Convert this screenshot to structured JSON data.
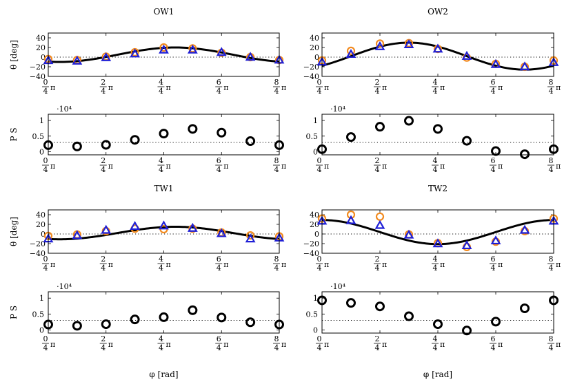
{
  "figure": {
    "x_label": "φ [rad]",
    "theta_label": "θ [deg]",
    "ps_label": "P S",
    "ps_multiplier": "·10⁴",
    "colors": {
      "orange": "#f28a1e",
      "blue": "#1f1fd6",
      "black": "#000000"
    }
  },
  "chart_data": [
    {
      "type": "scatter",
      "title": "OW1",
      "panel": "theta",
      "x_ticks": [
        "0/4π",
        "2/4π",
        "4/4π",
        "6/4π",
        "8/4π"
      ],
      "y_ticks": [
        40,
        20,
        0,
        -20,
        -40
      ],
      "xlim": [
        0,
        2
      ],
      "ylim": [
        -40,
        50
      ],
      "reference_line": 0,
      "curve": {
        "type": "sine",
        "amp": 15,
        "mean": 5,
        "peak_x": 1.1
      },
      "series": [
        {
          "marker": "circle",
          "color": "orange",
          "x": [
            0,
            0.25,
            0.5,
            0.75,
            1,
            1.25,
            1.5,
            1.75,
            2
          ],
          "y": [
            -4,
            -6,
            1,
            10,
            20,
            18,
            9,
            0,
            -6
          ]
        },
        {
          "marker": "triangle",
          "color": "blue",
          "x": [
            0,
            0.25,
            0.5,
            0.75,
            1,
            1.25,
            1.5,
            1.75,
            2
          ],
          "y": [
            -7,
            -8,
            -1,
            7,
            15,
            15,
            10,
            0,
            -6
          ]
        }
      ]
    },
    {
      "type": "scatter",
      "title": "OW2",
      "panel": "theta",
      "x_ticks": [
        "0/4π",
        "2/4π",
        "4/4π",
        "6/4π",
        "8/4π"
      ],
      "y_ticks": [
        40,
        20,
        0,
        -20,
        -40
      ],
      "xlim": [
        0,
        2
      ],
      "ylim": [
        -40,
        50
      ],
      "reference_line": 0,
      "curve": {
        "type": "sine",
        "amp": 28,
        "mean": 2,
        "peak_x": 0.75
      },
      "series": [
        {
          "marker": "circle",
          "color": "orange",
          "x": [
            0,
            0.25,
            0.5,
            0.75,
            1,
            1.25,
            1.5,
            1.75,
            2
          ],
          "y": [
            -7,
            13,
            28,
            29,
            17,
            -1,
            -14,
            -20,
            -7
          ]
        },
        {
          "marker": "triangle",
          "color": "blue",
          "x": [
            0,
            0.25,
            0.5,
            0.75,
            1,
            1.25,
            1.5,
            1.75,
            2
          ],
          "y": [
            -10,
            6,
            22,
            26,
            17,
            2,
            -15,
            -20,
            -11
          ]
        }
      ]
    },
    {
      "type": "scatter",
      "title": "",
      "panel": "ps",
      "x_ticks": [
        "0/4π",
        "2/4π",
        "4/4π",
        "6/4π",
        "8/4π"
      ],
      "y_ticks": [
        "1",
        "0.5",
        "0"
      ],
      "xlim": [
        0,
        2
      ],
      "ylim": [
        -0.1,
        1.2
      ],
      "reference_line": 0.3,
      "series": [
        {
          "marker": "circle",
          "color": "black",
          "x": [
            0,
            0.25,
            0.5,
            0.75,
            1,
            1.25,
            1.5,
            1.75,
            2
          ],
          "y": [
            0.21,
            0.17,
            0.22,
            0.38,
            0.58,
            0.73,
            0.61,
            0.34,
            0.21
          ]
        }
      ]
    },
    {
      "type": "scatter",
      "title": "",
      "panel": "ps",
      "x_ticks": [
        "0/4π",
        "2/4π",
        "4/4π",
        "6/4π",
        "8/4π"
      ],
      "y_ticks": [
        "1",
        "0.5",
        "0"
      ],
      "xlim": [
        0,
        2
      ],
      "ylim": [
        -0.1,
        1.2
      ],
      "reference_line": 0.3,
      "series": [
        {
          "marker": "circle",
          "color": "black",
          "x": [
            0,
            0.25,
            0.5,
            0.75,
            1,
            1.25,
            1.5,
            1.75,
            2
          ],
          "y": [
            0.08,
            0.47,
            0.8,
            0.99,
            0.73,
            0.35,
            0.02,
            -0.08,
            0.08
          ]
        }
      ]
    },
    {
      "type": "scatter",
      "title": "TW1",
      "panel": "theta",
      "x_ticks": [
        "0/4π",
        "2/4π",
        "4/4π",
        "6/4π",
        "8/4π"
      ],
      "y_ticks": [
        40,
        20,
        0,
        -20,
        -40
      ],
      "xlim": [
        0,
        2
      ],
      "ylim": [
        -40,
        50
      ],
      "reference_line": 0,
      "curve": {
        "type": "sine",
        "amp": 13,
        "mean": 2,
        "peak_x": 1.1
      },
      "series": [
        {
          "marker": "circle",
          "color": "orange",
          "x": [
            0,
            0.25,
            0.5,
            0.75,
            1,
            1.25,
            1.5,
            1.75,
            2
          ],
          "y": [
            -4,
            -1,
            6,
            11,
            10,
            11,
            3,
            -3,
            -5
          ]
        },
        {
          "marker": "triangle",
          "color": "blue",
          "x": [
            0,
            0.25,
            0.5,
            0.75,
            1,
            1.25,
            1.5,
            1.75,
            2
          ],
          "y": [
            -10,
            -3,
            8,
            16,
            17,
            12,
            1,
            -10,
            -8
          ]
        }
      ]
    },
    {
      "type": "scatter",
      "title": "TW2",
      "panel": "theta",
      "x_ticks": [
        "0/4π",
        "2/4π",
        "4/4π",
        "6/4π",
        "8/4π"
      ],
      "y_ticks": [
        40,
        20,
        0,
        -20,
        -40
      ],
      "xlim": [
        0,
        2
      ],
      "ylim": [
        -40,
        50
      ],
      "reference_line": 0,
      "curve": {
        "type": "sine",
        "amp": 25,
        "mean": 4,
        "peak_x": 0.0
      },
      "series": [
        {
          "marker": "circle",
          "color": "orange",
          "x": [
            0,
            0.25,
            0.5,
            0.75,
            1,
            1.25,
            1.5,
            1.75,
            2
          ],
          "y": [
            32,
            40,
            36,
            -1,
            -19,
            -27,
            -16,
            6,
            32
          ]
        },
        {
          "marker": "triangle",
          "color": "blue",
          "x": [
            0,
            0.25,
            0.5,
            0.75,
            1,
            1.25,
            1.5,
            1.75,
            2
          ],
          "y": [
            27,
            28,
            18,
            -2,
            -20,
            -24,
            -14,
            8,
            27
          ]
        }
      ]
    },
    {
      "type": "scatter",
      "title": "",
      "panel": "ps",
      "x_ticks": [
        "0/4π",
        "2/4π",
        "4/4π",
        "6/4π",
        "8/4π"
      ],
      "y_ticks": [
        "1",
        "0.5",
        "0"
      ],
      "xlim": [
        0,
        2
      ],
      "ylim": [
        -0.1,
        1.2
      ],
      "reference_line": 0.3,
      "series": [
        {
          "marker": "circle",
          "color": "black",
          "x": [
            0,
            0.25,
            0.5,
            0.75,
            1,
            1.25,
            1.5,
            1.75,
            2
          ],
          "y": [
            0.17,
            0.13,
            0.18,
            0.33,
            0.4,
            0.62,
            0.39,
            0.24,
            0.17
          ]
        }
      ]
    },
    {
      "type": "scatter",
      "title": "",
      "panel": "ps",
      "x_ticks": [
        "0/4π",
        "2/4π",
        "4/4π",
        "6/4π",
        "8/4π"
      ],
      "y_ticks": [
        "1",
        "0.5",
        "0"
      ],
      "xlim": [
        0,
        2
      ],
      "ylim": [
        -0.1,
        1.2
      ],
      "reference_line": 0.3,
      "series": [
        {
          "marker": "circle",
          "color": "black",
          "x": [
            0,
            0.25,
            0.5,
            0.75,
            1,
            1.25,
            1.5,
            1.75,
            2
          ],
          "y": [
            0.93,
            0.85,
            0.74,
            0.43,
            0.18,
            -0.02,
            0.26,
            0.68,
            0.93
          ]
        }
      ]
    }
  ]
}
